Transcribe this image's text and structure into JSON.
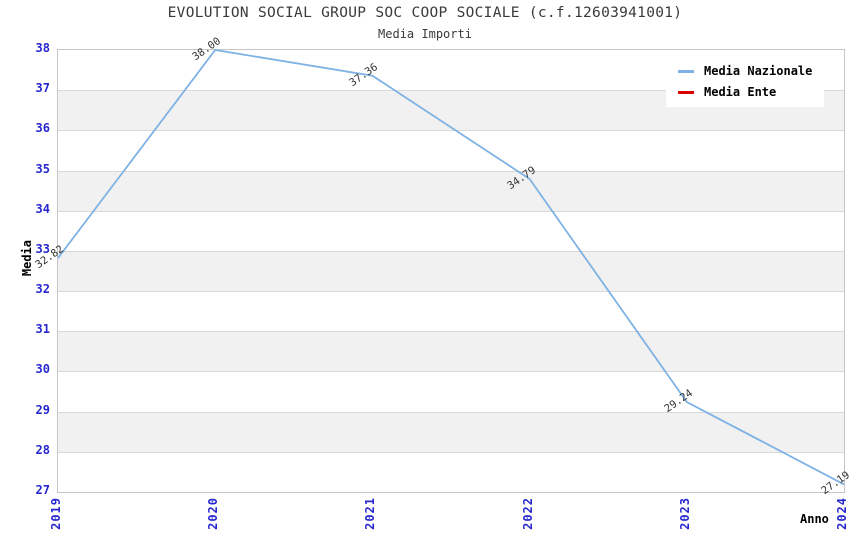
{
  "title": "EVOLUTION SOCIAL GROUP SOC COOP SOCIALE (c.f.12603941001)",
  "subtitle": "Media Importi",
  "legend": {
    "position": "top-right",
    "items": [
      {
        "label": "Media Nazionale",
        "color": "#7eb2e4"
      },
      {
        "label": "Media Ente",
        "color": "#dd0000"
      }
    ]
  },
  "axes": {
    "ylabel": "Media",
    "xlabel": "Anno",
    "tick_color": "#2727cf"
  },
  "colors": {
    "line_blue": "#7eb2e4",
    "line_red": "#dd0000",
    "band_gray": "#f1f1f1",
    "grid": "#d9d9d9",
    "border": "#c6c6c6",
    "title_text": "#3a3a3a"
  },
  "chart_data": {
    "type": "line",
    "title": "EVOLUTION SOCIAL GROUP SOC COOP SOCIALE (c.f.12603941001)",
    "subtitle": "Media Importi",
    "xlabel": "Anno",
    "ylabel": "Media",
    "x": [
      2019,
      2020,
      2021,
      2022,
      2023,
      2024
    ],
    "ylim": [
      27,
      38
    ],
    "ytick_step": 1,
    "grid": "horizontal alternating white/gray bands",
    "legend_position": "top-right",
    "series": [
      {
        "name": "Media Nazionale",
        "color": "#7eb2e4",
        "values": [
          32.82,
          38.0,
          37.36,
          34.79,
          29.24,
          27.19
        ],
        "point_labels": [
          "32.82",
          "38.00",
          "37.36",
          "34.79",
          "29.24",
          "27.19"
        ]
      },
      {
        "name": "Media Ente",
        "color": "#dd0000",
        "values": [],
        "point_labels": []
      }
    ]
  }
}
